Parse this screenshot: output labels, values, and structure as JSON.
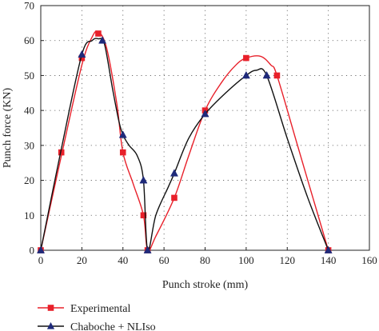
{
  "chart_data": {
    "type": "line",
    "xlabel": "Punch stroke (mm)",
    "ylabel": "Punch force (KN)",
    "xlim": [
      0,
      160
    ],
    "ylim": [
      0,
      70
    ],
    "xticks": [
      0,
      20,
      40,
      60,
      80,
      100,
      120,
      140,
      160
    ],
    "yticks": [
      0,
      10,
      20,
      30,
      40,
      50,
      60,
      70
    ],
    "grid": true,
    "grid_style": "dotted",
    "legend_position": "bottom-left",
    "series": [
      {
        "name": "Experimental",
        "color": "#e8202a",
        "marker": "square",
        "points": [
          [
            0,
            0
          ],
          [
            10,
            28
          ],
          [
            20,
            55
          ],
          [
            28,
            62
          ],
          [
            40,
            28
          ],
          [
            50,
            10
          ],
          [
            52,
            0
          ],
          [
            65,
            15
          ],
          [
            80,
            40
          ],
          [
            100,
            55
          ],
          [
            115,
            50
          ],
          [
            140,
            0
          ]
        ],
        "curve": [
          [
            0,
            0
          ],
          [
            10,
            27
          ],
          [
            20,
            53
          ],
          [
            25,
            61
          ],
          [
            28,
            62.5
          ],
          [
            32,
            58
          ],
          [
            37,
            42
          ],
          [
            40,
            28
          ],
          [
            45,
            19
          ],
          [
            50,
            10
          ],
          [
            52,
            0
          ],
          [
            56,
            4
          ],
          [
            65,
            15
          ],
          [
            72,
            27
          ],
          [
            80,
            40
          ],
          [
            88,
            48
          ],
          [
            95,
            53
          ],
          [
            100,
            55
          ],
          [
            107,
            55.5
          ],
          [
            112,
            53
          ],
          [
            115,
            50
          ],
          [
            125,
            30
          ],
          [
            133,
            14
          ],
          [
            140,
            0
          ]
        ]
      },
      {
        "name": "Chaboche + NLIso",
        "color": "#111111",
        "marker": "triangle",
        "points": [
          [
            0,
            0
          ],
          [
            20,
            56
          ],
          [
            30,
            60
          ],
          [
            40,
            33
          ],
          [
            50,
            20
          ],
          [
            52,
            0
          ],
          [
            65,
            22
          ],
          [
            80,
            39
          ],
          [
            100,
            50
          ],
          [
            110,
            50
          ],
          [
            140,
            0
          ]
        ],
        "curve": [
          [
            0,
            0
          ],
          [
            10,
            29
          ],
          [
            20,
            56
          ],
          [
            25,
            60
          ],
          [
            28,
            60.5
          ],
          [
            31,
            59
          ],
          [
            35,
            46
          ],
          [
            38,
            37
          ],
          [
            40,
            33
          ],
          [
            43,
            30
          ],
          [
            47,
            27
          ],
          [
            50,
            20
          ],
          [
            52,
            0
          ],
          [
            56,
            10
          ],
          [
            62,
            18
          ],
          [
            65,
            22
          ],
          [
            72,
            32
          ],
          [
            80,
            39
          ],
          [
            90,
            45
          ],
          [
            100,
            50
          ],
          [
            105,
            51.5
          ],
          [
            110,
            50
          ],
          [
            120,
            32
          ],
          [
            130,
            15
          ],
          [
            140,
            0
          ]
        ]
      }
    ]
  }
}
